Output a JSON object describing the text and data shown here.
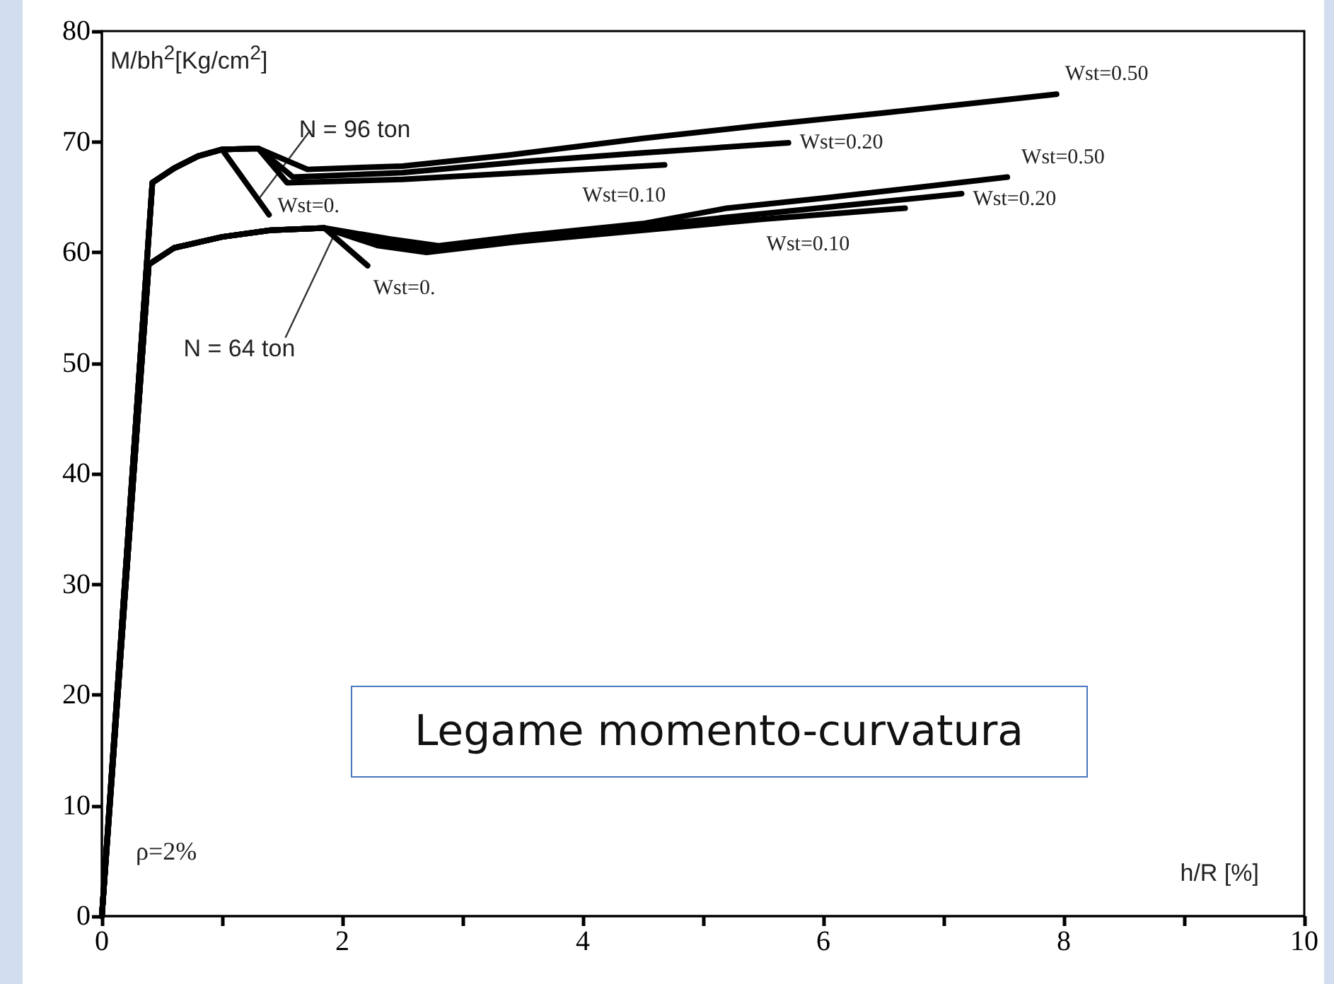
{
  "chart_data": {
    "type": "line",
    "xlabel": "h/R [%]",
    "ylabel": "M/bh$^{2}$[Kg/cm$^{2}$]",
    "xlim": [
      0,
      10
    ],
    "ylim": [
      0,
      80
    ],
    "xticks": [
      0,
      {
        "value": 1,
        "label": null
      },
      2,
      {
        "value": 3,
        "label": null
      },
      4,
      {
        "value": 5,
        "label": null
      },
      6,
      {
        "value": 7,
        "label": null
      },
      8,
      {
        "value": 9,
        "label": null
      },
      10
    ],
    "yticks": [
      0,
      10,
      20,
      30,
      40,
      50,
      60,
      70,
      80
    ],
    "grid": false,
    "legend": false,
    "marker": "none",
    "line_style": "solid",
    "annotations": [
      {
        "text": "N = 96 ton",
        "x": 1.31,
        "y": 64.9
      },
      {
        "text": "N = 64 ton",
        "x": 1.95,
        "y": 62.0
      },
      "ρ=2%",
      "Legame momento-curvatura"
    ],
    "series": [
      {
        "name": "Wst=0.",
        "color": "#000000",
        "x": [
          0,
          0.42,
          0.6,
          0.8,
          1.0,
          1.39
        ],
        "values": [
          0,
          66.3,
          67.6,
          68.7,
          69.3,
          63.4
        ]
      },
      {
        "name": "Wst=0.10",
        "color": "#000000",
        "x": [
          0,
          0.42,
          0.6,
          0.8,
          1.0,
          1.3,
          1.54,
          2.5,
          3.5,
          4.68
        ],
        "values": [
          0,
          66.3,
          67.6,
          68.7,
          69.3,
          69.4,
          66.3,
          66.6,
          67.2,
          67.9
        ]
      },
      {
        "name": "Wst=0.20",
        "color": "#000000",
        "x": [
          0,
          0.42,
          0.6,
          0.8,
          1.0,
          1.3,
          1.59,
          2.5,
          3.5,
          4.5,
          5.71
        ],
        "values": [
          0,
          66.3,
          67.6,
          68.7,
          69.3,
          69.4,
          66.8,
          67.2,
          68.2,
          69.0,
          69.9
        ]
      },
      {
        "name": "Wst=0.50",
        "color": "#000000",
        "x": [
          0,
          0.42,
          0.6,
          0.8,
          1.0,
          1.3,
          1.71,
          2.5,
          3.39,
          4.5,
          5.42,
          6.5,
          7.94
        ],
        "values": [
          0,
          66.3,
          67.6,
          68.7,
          69.3,
          69.4,
          67.5,
          67.8,
          68.8,
          70.3,
          71.4,
          72.6,
          74.3
        ]
      },
      {
        "name": "Wst=0.",
        "color": "#000000",
        "x": [
          0,
          0.39,
          0.6,
          1.0,
          1.4,
          1.85,
          2.21
        ],
        "values": [
          0,
          58.9,
          60.4,
          61.4,
          62.0,
          62.2,
          58.8
        ]
      },
      {
        "name": "Wst=0.10",
        "color": "#000000",
        "x": [
          0,
          0.39,
          0.6,
          1.0,
          1.4,
          1.85,
          2.3,
          2.7,
          3.4,
          4.5,
          5.5,
          6.68
        ],
        "values": [
          0,
          58.9,
          60.4,
          61.4,
          62.0,
          62.2,
          60.6,
          60.0,
          60.9,
          62.0,
          63.0,
          64.0
        ]
      },
      {
        "name": "Wst=0.20",
        "color": "#000000",
        "x": [
          0,
          0.39,
          0.6,
          1.0,
          1.4,
          1.85,
          2.35,
          2.7,
          3.4,
          4.5,
          5.5,
          7.15
        ],
        "values": [
          0,
          58.9,
          60.4,
          61.4,
          62.0,
          62.2,
          60.9,
          60.3,
          61.3,
          62.4,
          63.5,
          65.3
        ]
      },
      {
        "name": "Wst=0.50",
        "color": "#000000",
        "x": [
          0,
          0.39,
          0.6,
          1.0,
          1.4,
          1.85,
          2.4,
          2.8,
          3.5,
          4.5,
          5.2,
          6.0,
          7.53
        ],
        "values": [
          0,
          58.9,
          60.4,
          61.4,
          62.0,
          62.2,
          61.2,
          60.6,
          61.5,
          62.6,
          64.0,
          64.9,
          66.8
        ]
      }
    ]
  }
}
